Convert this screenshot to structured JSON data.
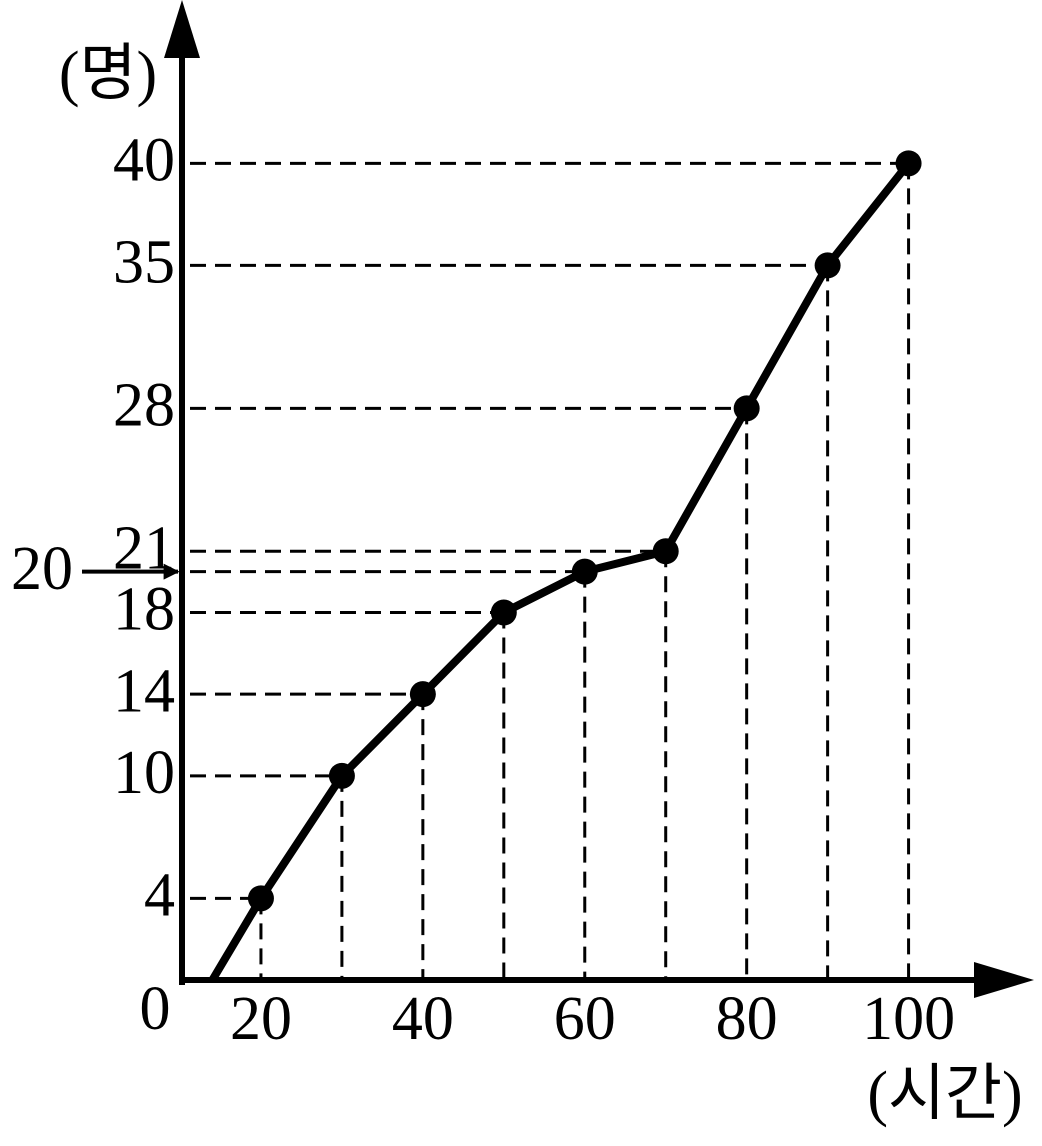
{
  "chart_data": {
    "type": "line",
    "x_label": "(시간)",
    "y_label": "(명)",
    "origin_label": "0",
    "x": [
      14,
      20,
      30,
      40,
      50,
      60,
      70,
      80,
      90,
      100
    ],
    "values": [
      0,
      4,
      10,
      14,
      18,
      20,
      21,
      28,
      35,
      40
    ],
    "color": "#000000",
    "xlim": [
      10,
      115
    ],
    "ylim": [
      0,
      48
    ],
    "xticks": [
      20,
      40,
      60,
      80,
      100
    ],
    "yticks": [
      4,
      10,
      14,
      18,
      21,
      28,
      35,
      40
    ],
    "annotation": {
      "value": 20,
      "label": "20"
    }
  }
}
